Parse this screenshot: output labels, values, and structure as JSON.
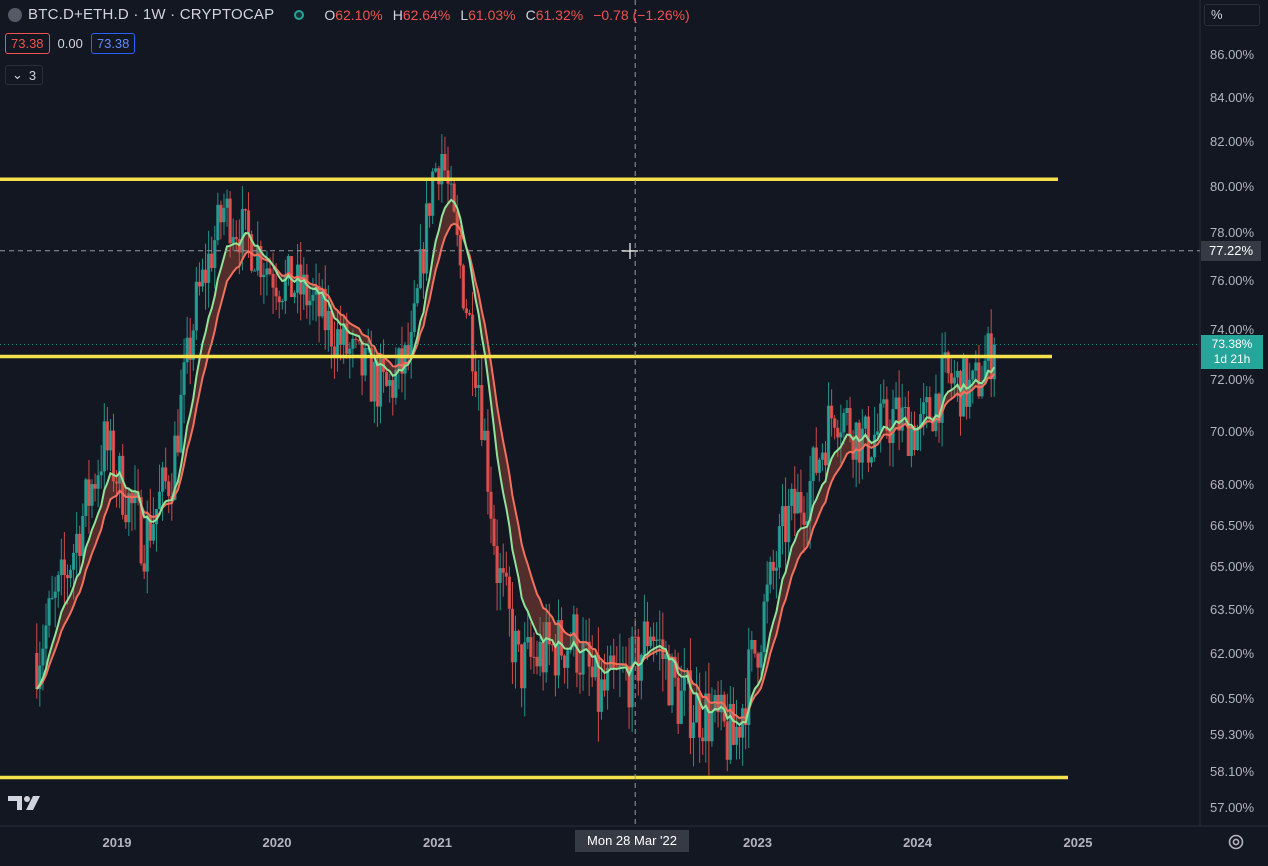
{
  "header": {
    "symbol": "BTC.D+ETH.D · 1W · CRYPTOCAP",
    "ohlc": [
      {
        "k": "O",
        "v": "62.10%"
      },
      {
        "k": "H",
        "v": "62.64%"
      },
      {
        "k": "L",
        "v": "61.03%"
      },
      {
        "k": "C",
        "v": "61.32%"
      }
    ],
    "change": "−0.78 (−1.26%)"
  },
  "trade": {
    "sell": "73.38",
    "spread": "0.00",
    "buy": "73.38"
  },
  "indicators_toggle": {
    "count": "3"
  },
  "scale_mode": "%",
  "cursor_price": "77.22%",
  "last_price": {
    "value": "73.38%",
    "countdown": "1d 21h"
  },
  "cursor_date": "Mon 28 Mar '22",
  "colors": {
    "up": "#26a69a",
    "down": "#ef5350",
    "level": "#f5e14b",
    "ma_fast": "#8fe39a",
    "ma_slow": "#f2705e",
    "bg": "#131722"
  },
  "icons": {
    "logo": "tradingview-logo-icon",
    "settings": "gear-icon",
    "crosshair": "crosshair-icon",
    "toggle": "chevron-down-icon"
  },
  "chart_data": {
    "type": "candlestick",
    "interval": "1W",
    "y_tick_labels": [
      "86.00%",
      "84.00%",
      "82.00%",
      "80.00%",
      "78.00%",
      "76.00%",
      "74.00%",
      "72.00%",
      "70.00%",
      "68.00%",
      "66.50%",
      "65.00%",
      "63.50%",
      "62.00%",
      "60.50%",
      "59.30%",
      "58.10%",
      "57.00%"
    ],
    "x_tick_labels": [
      "2019",
      "2020",
      "2021",
      "2023",
      "2024",
      "2025"
    ],
    "ylim": [
      56.2,
      87.5
    ],
    "horizontal_levels": [
      80.3,
      72.9,
      57.9
    ],
    "crosshair": {
      "date": "2022-03-28",
      "price": 77.22
    },
    "close_path": [
      {
        "date": "2018-07-02",
        "close": 62.0
      },
      {
        "date": "2018-09-03",
        "close": 64.5
      },
      {
        "date": "2018-12-03",
        "close": 69.5
      },
      {
        "date": "2019-03-04",
        "close": 66.0
      },
      {
        "date": "2019-05-06",
        "close": 68.5
      },
      {
        "date": "2019-07-01",
        "close": 75.0
      },
      {
        "date": "2019-09-02",
        "close": 79.0
      },
      {
        "date": "2019-11-04",
        "close": 77.5
      },
      {
        "date": "2020-01-06",
        "close": 76.0
      },
      {
        "date": "2020-03-02",
        "close": 75.5
      },
      {
        "date": "2020-05-04",
        "close": 74.0
      },
      {
        "date": "2020-07-06",
        "close": 72.5
      },
      {
        "date": "2020-09-07",
        "close": 71.5
      },
      {
        "date": "2020-11-02",
        "close": 73.0
      },
      {
        "date": "2020-12-21",
        "close": 80.5
      },
      {
        "date": "2021-01-11",
        "close": 81.5
      },
      {
        "date": "2021-02-22",
        "close": 76.5
      },
      {
        "date": "2021-04-05",
        "close": 72.0
      },
      {
        "date": "2021-05-17",
        "close": 65.0
      },
      {
        "date": "2021-07-05",
        "close": 61.5
      },
      {
        "date": "2021-09-06",
        "close": 62.0
      },
      {
        "date": "2021-11-08",
        "close": 62.5
      },
      {
        "date": "2022-01-03",
        "close": 60.5
      },
      {
        "date": "2022-03-28",
        "close": 61.5
      },
      {
        "date": "2022-05-02",
        "close": 63.0
      },
      {
        "date": "2022-07-04",
        "close": 60.5
      },
      {
        "date": "2022-09-05",
        "close": 60.0
      },
      {
        "date": "2022-11-07",
        "close": 59.0
      },
      {
        "date": "2023-01-02",
        "close": 62.5
      },
      {
        "date": "2023-03-06",
        "close": 66.5
      },
      {
        "date": "2023-05-01",
        "close": 68.0
      },
      {
        "date": "2023-06-26",
        "close": 71.0
      },
      {
        "date": "2023-09-04",
        "close": 69.5
      },
      {
        "date": "2023-11-06",
        "close": 70.5
      },
      {
        "date": "2024-01-08",
        "close": 70.0
      },
      {
        "date": "2024-03-04",
        "close": 72.0
      },
      {
        "date": "2024-05-06",
        "close": 71.5
      },
      {
        "date": "2024-06-24",
        "close": 73.38
      }
    ]
  }
}
